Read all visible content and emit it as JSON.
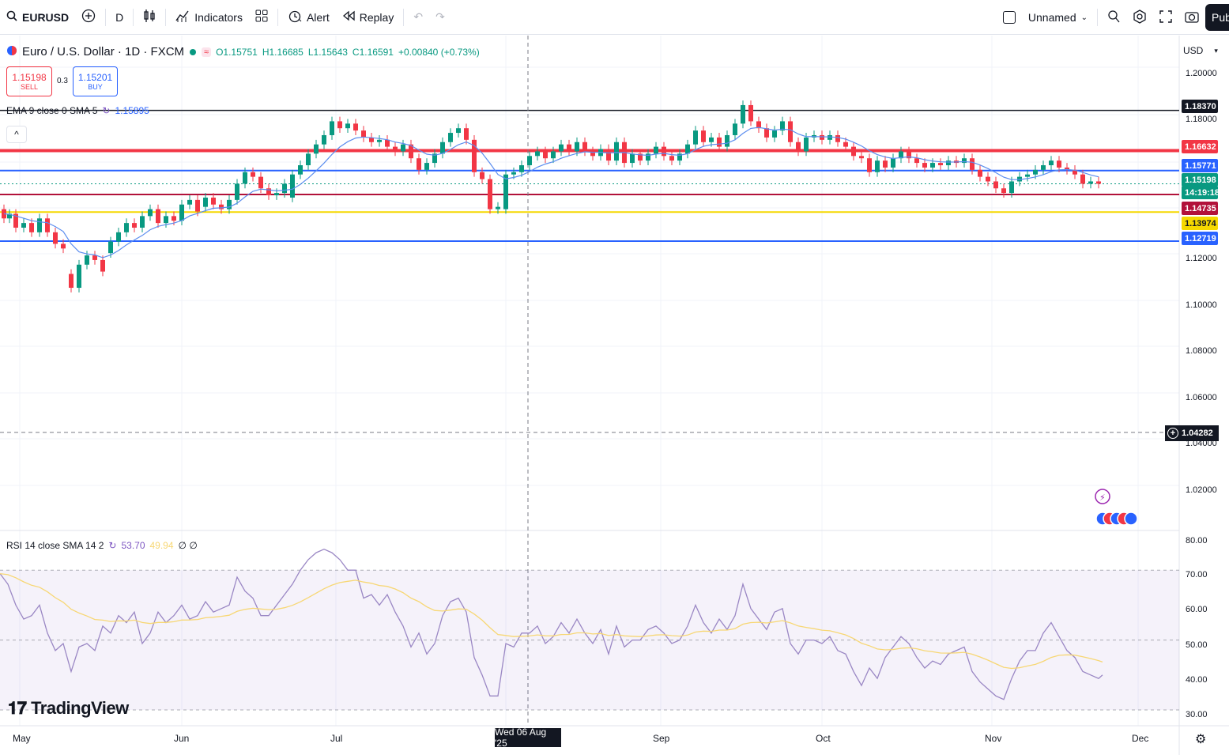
{
  "toolbar": {
    "symbol": "EURUSD",
    "interval": "D",
    "indicators_label": "Indicators",
    "alert_label": "Alert",
    "replay_label": "Replay",
    "layout_name": "Unnamed",
    "publish_label": "Pub"
  },
  "legend": {
    "title": "Euro / U.S. Dollar · 1D · FXCM",
    "open": "O1.15751",
    "high": "H1.16685",
    "low": "L1.15643",
    "close": "C1.16591",
    "change": "+0.00840 (+0.73%)",
    "sell_price": "1.15198",
    "sell_label": "SELL",
    "spread": "0.3",
    "buy_price": "1.15201",
    "buy_label": "BUY",
    "ema_label": "EMA 9 close 0 SMA 5",
    "ema_value": "1.15895",
    "rsi_label": "RSI 14 close SMA 14 2",
    "rsi_value": "53.70",
    "rsi_sma_value": "49.94",
    "rsi_extra": "∅ ∅",
    "currency": "USD"
  },
  "price_axis": [
    "1.20000",
    "1.18000",
    "1.12000",
    "1.10000",
    "1.08000",
    "1.06000",
    "1.04000",
    "1.02000"
  ],
  "rsi_axis": [
    "80.00",
    "70.00",
    "60.00",
    "50.00",
    "40.00",
    "30.00"
  ],
  "price_tags": [
    {
      "text": "1.18370",
      "color": "#131722"
    },
    {
      "text": "1.16632",
      "color": "#f23645"
    },
    {
      "text": "1.15771",
      "color": "#2962ff"
    },
    {
      "text": "1.15198",
      "color": "#089981"
    },
    {
      "text": "14:19:18",
      "color": "#089981"
    },
    {
      "text": "1.14735",
      "color": "#b2113a"
    },
    {
      "text": "1.13974",
      "color": "#f5d800"
    },
    {
      "text": "1.12719",
      "color": "#2962ff"
    }
  ],
  "crosshair_price": "1.04282",
  "time_axis": [
    "May",
    "Jun",
    "Jul",
    "Sep",
    "Oct",
    "Nov",
    "Dec"
  ],
  "time_cursor": "Wed 06 Aug '25",
  "brand": "TradingView",
  "colors": {
    "up": "#089981",
    "down": "#f23645",
    "ema": "#2962ff",
    "rsi": "#7e57c2",
    "rsi_sma": "#f7d774"
  }
}
